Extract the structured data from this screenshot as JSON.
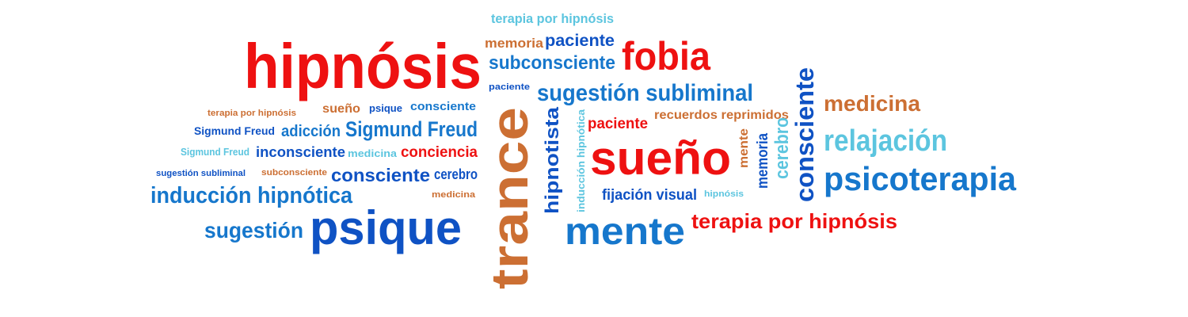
{
  "word_cloud": {
    "palette": {
      "red": "#ee1111",
      "blue": "#0f52c4",
      "mid_blue": "#1677cc",
      "light_blue": "#5cc5df",
      "orange": "#cc6f33"
    },
    "words": [
      {
        "text": "terapia por hipnósis",
        "color": "light_blue"
      },
      {
        "text": "hipnósis",
        "color": "red"
      },
      {
        "text": "memoria",
        "color": "orange"
      },
      {
        "text": "paciente",
        "color": "blue"
      },
      {
        "text": "fobia",
        "color": "red"
      },
      {
        "text": "subconsciente",
        "color": "mid_blue"
      },
      {
        "text": "paciente",
        "color": "blue"
      },
      {
        "text": "sugestión subliminal",
        "color": "mid_blue"
      },
      {
        "text": "terapia por hipnósis",
        "color": "orange"
      },
      {
        "text": "sueño",
        "color": "orange"
      },
      {
        "text": "psique",
        "color": "blue"
      },
      {
        "text": "consciente",
        "color": "mid_blue"
      },
      {
        "text": "Sigmund Freud",
        "color": "blue"
      },
      {
        "text": "adicción",
        "color": "mid_blue"
      },
      {
        "text": "Sigmund Freud",
        "color": "mid_blue"
      },
      {
        "text": "trance",
        "color": "orange"
      },
      {
        "text": "hipnotista",
        "color": "blue"
      },
      {
        "text": "inducción hipnótica",
        "color": "light_blue"
      },
      {
        "text": "paciente",
        "color": "red"
      },
      {
        "text": "recuerdos reprimidos",
        "color": "orange"
      },
      {
        "text": "consciente",
        "color": "blue"
      },
      {
        "text": "medicina",
        "color": "orange"
      },
      {
        "text": "relajación",
        "color": "light_blue"
      },
      {
        "text": "Sigmund Freud",
        "color": "light_blue"
      },
      {
        "text": "inconsciente",
        "color": "blue"
      },
      {
        "text": "medicina",
        "color": "light_blue"
      },
      {
        "text": "conciencia",
        "color": "red"
      },
      {
        "text": "sueño",
        "color": "red"
      },
      {
        "text": "mente",
        "color": "orange"
      },
      {
        "text": "memoria",
        "color": "blue"
      },
      {
        "text": "cerebro",
        "color": "light_blue"
      },
      {
        "text": "sugestión subliminal",
        "color": "blue"
      },
      {
        "text": "subconsciente",
        "color": "orange"
      },
      {
        "text": "consciente",
        "color": "blue"
      },
      {
        "text": "cerebro",
        "color": "blue"
      },
      {
        "text": "psicoterapia",
        "color": "mid_blue"
      },
      {
        "text": "medicina",
        "color": "orange"
      },
      {
        "text": "fijación visual",
        "color": "blue"
      },
      {
        "text": "hipnósis",
        "color": "light_blue"
      },
      {
        "text": "inducción hipnótica",
        "color": "mid_blue"
      },
      {
        "text": "terapia por hipnósis",
        "color": "red"
      },
      {
        "text": "sugestión",
        "color": "mid_blue"
      },
      {
        "text": "psique",
        "color": "blue"
      },
      {
        "text": "mente",
        "color": "mid_blue"
      }
    ]
  }
}
